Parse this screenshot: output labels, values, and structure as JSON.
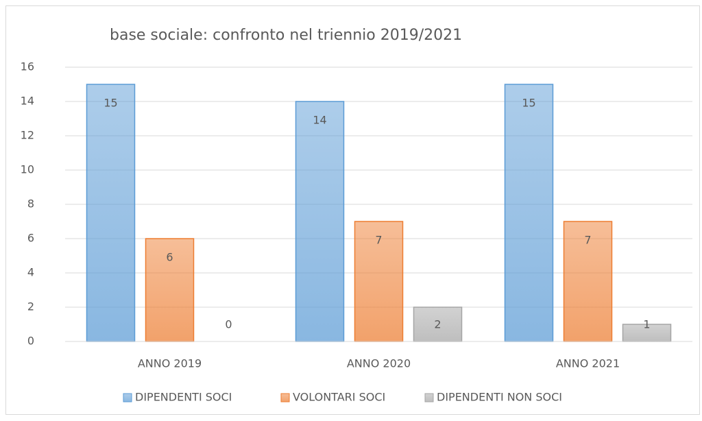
{
  "chart_data": {
    "type": "bar",
    "title": "base sociale: confronto nel triennio 2019/2021",
    "categories": [
      "ANNO 2019",
      "ANNO 2020",
      "ANNO 2021"
    ],
    "series": [
      {
        "name": "DIPENDENTI SOCI",
        "color": "#5b9bd5",
        "values": [
          15,
          14,
          15
        ]
      },
      {
        "name": "VOLONTARI SOCI",
        "color": "#ed7d31",
        "values": [
          6,
          7,
          7
        ]
      },
      {
        "name": "DIPENDENTI NON SOCI",
        "color": "#a5a5a5",
        "values": [
          0,
          2,
          1
        ]
      }
    ],
    "ylim": [
      0,
      16
    ],
    "yticks": [
      0,
      2,
      4,
      6,
      8,
      10,
      12,
      14,
      16
    ],
    "grid": true,
    "legend": "bottom"
  }
}
